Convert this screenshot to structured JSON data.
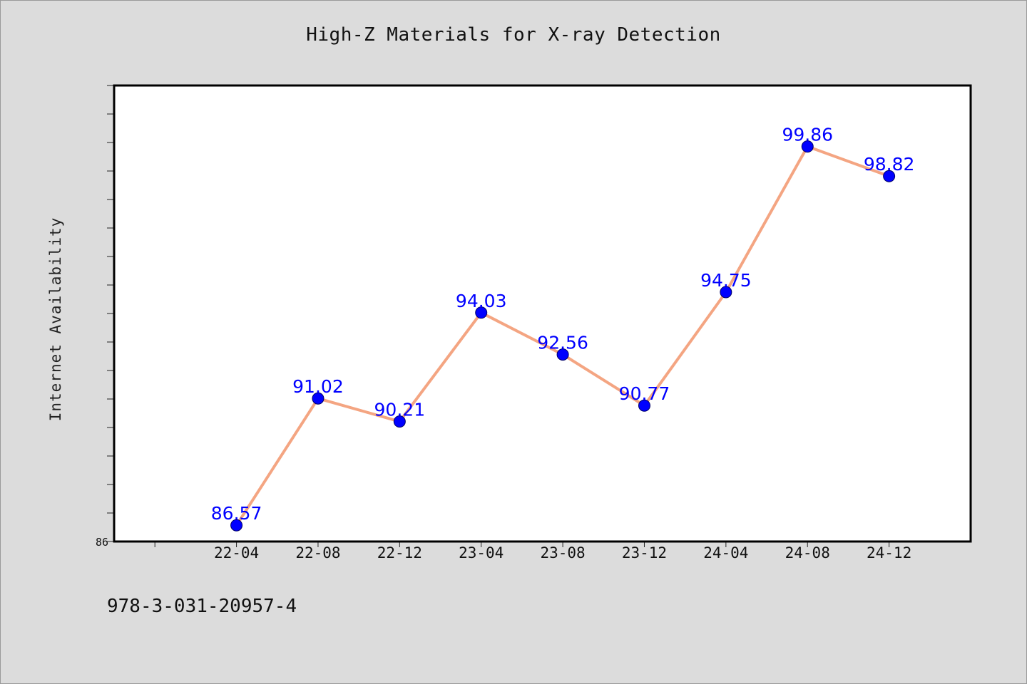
{
  "chart_data": {
    "type": "line",
    "title": "High-Z Materials for X-ray Detection",
    "xlabel": "",
    "ylabel": "Internet Availability",
    "categories": [
      "22-04",
      "22-08",
      "22-12",
      "23-04",
      "23-08",
      "23-12",
      "24-04",
      "24-08",
      "24-12"
    ],
    "x_extra_leading_category": true,
    "values": [
      86.57,
      91.02,
      90.21,
      94.03,
      92.56,
      90.77,
      94.75,
      99.86,
      98.82
    ],
    "data_labels": [
      "86.57",
      "91.02",
      "90.21",
      "94.03",
      "92.56",
      "90.77",
      "94.75",
      "99.86",
      "98.82"
    ],
    "ylim": [
      86,
      102
    ],
    "y_tick_step": 1,
    "y_tick_label": "86",
    "grid": false,
    "line_color": "#f4a582",
    "marker_color": "#0000ff",
    "label_color": "#0000ff",
    "plot_background": "#ffffff",
    "figure_background": "#dcdcdc"
  },
  "footer": {
    "text": "978-3-031-20957-4"
  }
}
